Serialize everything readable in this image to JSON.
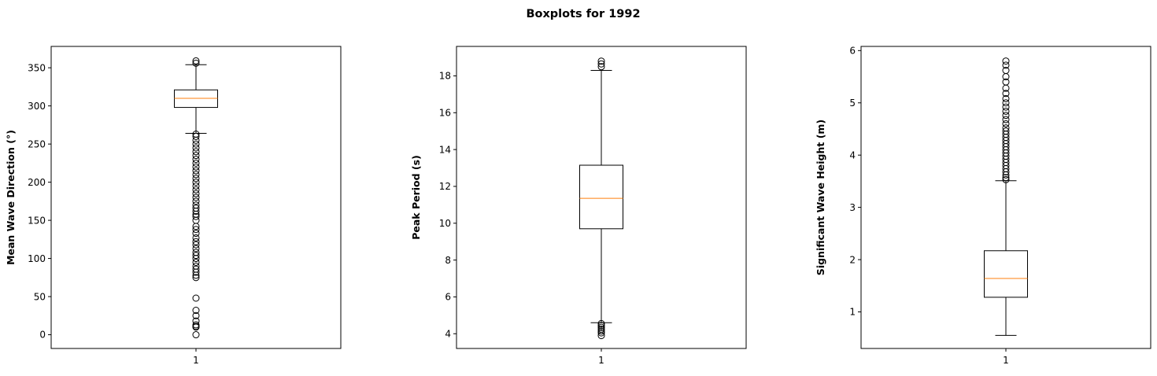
{
  "figure": {
    "suptitle": "Boxplots for 1992"
  },
  "colors": {
    "box": "#000000",
    "median": "#ff7f0e",
    "background": "#ffffff"
  },
  "chart_data": [
    {
      "type": "boxplot",
      "ylabel": "Mean Wave Direction (°)",
      "categories": [
        "1"
      ],
      "ylim": [
        -18,
        378
      ],
      "yticks": [
        0,
        50,
        100,
        150,
        200,
        250,
        300,
        350
      ],
      "box": {
        "whisker_low": 264,
        "q1": 298,
        "median": 310,
        "q3": 321,
        "whisker_high": 354
      },
      "outliers": [
        0,
        10,
        11,
        13,
        18,
        25,
        32,
        48,
        75,
        78,
        82,
        86,
        90,
        95,
        100,
        104,
        108,
        113,
        118,
        122,
        127,
        133,
        138,
        142,
        150,
        155,
        158,
        162,
        166,
        170,
        175,
        180,
        185,
        190,
        195,
        200,
        205,
        210,
        215,
        220,
        225,
        230,
        235,
        240,
        245,
        250,
        255,
        260,
        263,
        356,
        359
      ]
    },
    {
      "type": "boxplot",
      "ylabel": "Peak Period (s)",
      "categories": [
        "1"
      ],
      "ylim": [
        3.2,
        19.6
      ],
      "yticks": [
        4,
        6,
        8,
        10,
        12,
        14,
        16,
        18
      ],
      "box": {
        "whisker_low": 4.6,
        "q1": 9.7,
        "median": 11.35,
        "q3": 13.15,
        "whisker_high": 18.3
      },
      "outliers": [
        3.9,
        4.05,
        4.15,
        4.25,
        4.35,
        4.45,
        4.55,
        18.5,
        18.65,
        18.8
      ]
    },
    {
      "type": "boxplot",
      "ylabel": "Significant Wave Height (m)",
      "categories": [
        "1"
      ],
      "ylim": [
        0.3,
        6.08
      ],
      "yticks": [
        1,
        2,
        3,
        4,
        5,
        6
      ],
      "box": {
        "whisker_low": 0.55,
        "q1": 1.28,
        "median": 1.64,
        "q3": 2.17,
        "whisker_high": 3.51
      },
      "outliers": [
        3.53,
        3.57,
        3.62,
        3.68,
        3.74,
        3.8,
        3.86,
        3.92,
        3.98,
        4.04,
        4.1,
        4.16,
        4.22,
        4.28,
        4.34,
        4.4,
        4.46,
        4.52,
        4.6,
        4.68,
        4.76,
        4.84,
        4.92,
        5.0,
        5.08,
        5.18,
        5.28,
        5.4,
        5.5,
        5.62,
        5.72,
        5.8
      ]
    }
  ]
}
